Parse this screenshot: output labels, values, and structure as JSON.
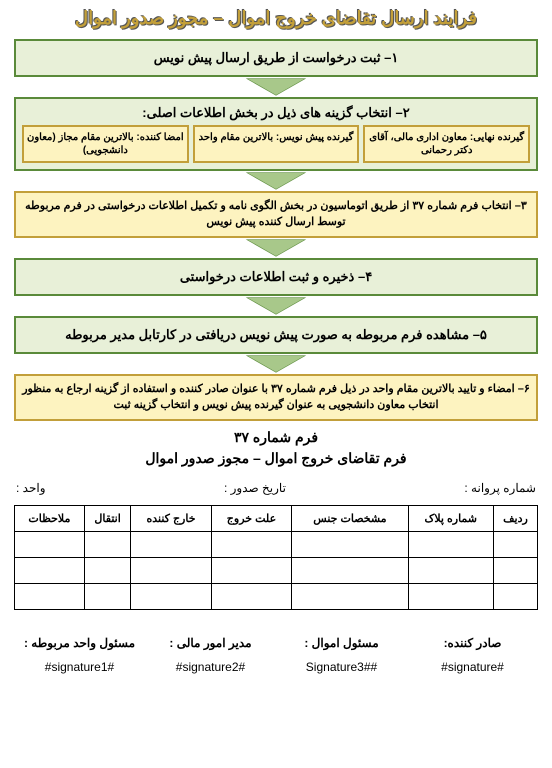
{
  "title": "فرایند ارسال تقاضای خروج اموال – مجوز صدور اموال",
  "steps": {
    "s1": "۱– ثبت درخواست از طریق ارسال پیش نویس",
    "s2_title": "۲– انتخاب گزینه های ذیل در بخش اطلاعات اصلی:",
    "s2_items": [
      "امضا کننده: بالاترین مقام مجاز (معاون دانشجویی)",
      "گیرنده پیش نویس: بالاترین مقام واحد",
      "گیرنده نهایی: معاون اداری مالی، آقای دکتر رحمانی"
    ],
    "s3": "۳– انتخاب فرم شماره ۳۷ از طریق اتوماسیون در بخش الگوی نامه و تکمیل اطلاعات درخواستی در فرم مربوطه توسط ارسال کننده پیش نویس",
    "s4": "۴– ذخیره و ثبت اطلاعات درخواستی",
    "s5": "۵– مشاهده فرم مربوطه به صورت پیش نویس دریافتی در کارتابل مدیر مربوطه",
    "s6": "۶– امضاء و تایید بالاترین مقام واحد در ذیل فرم شماره ۳۷ با عنوان صادر کننده و استفاده از گزینه ارجاع به منظور انتخاب معاون دانشجویی به عنوان گیرنده پیش نویس و انتخاب گزینه ثبت"
  },
  "form": {
    "number_label": "فرم شماره ۳۷",
    "title": "فرم تقاضای خروج اموال – مجوز صدور اموال",
    "meta": {
      "permit": "شماره پروانه :",
      "date": "تاریخ صدور :",
      "unit": "واحد :"
    },
    "columns": [
      "ردیف",
      "شماره پلاک",
      "مشخصات جنس",
      "علت خروج",
      "خارج کننده",
      "انتقال",
      "ملاحظات"
    ],
    "rows": [
      [
        "",
        "",
        "",
        "",
        "",
        "",
        ""
      ],
      [
        "",
        "",
        "",
        "",
        "",
        "",
        ""
      ],
      [
        "",
        "",
        "",
        "",
        "",
        "",
        ""
      ]
    ],
    "signers": [
      "صادر کننده:",
      "مسئول اموال :",
      "مدیر امور مالی :",
      "مسئول واحد مربوطه :"
    ],
    "sigs": [
      "#signature#",
      "Signature3##",
      "#signature2#",
      "#signature1#"
    ]
  },
  "colors": {
    "green_border": "#5a8a3a",
    "green_fill": "#e8f0d8",
    "yellow_border": "#c29f3a",
    "yellow_fill": "#fdf3c0",
    "arrow": "#a8c88a"
  }
}
